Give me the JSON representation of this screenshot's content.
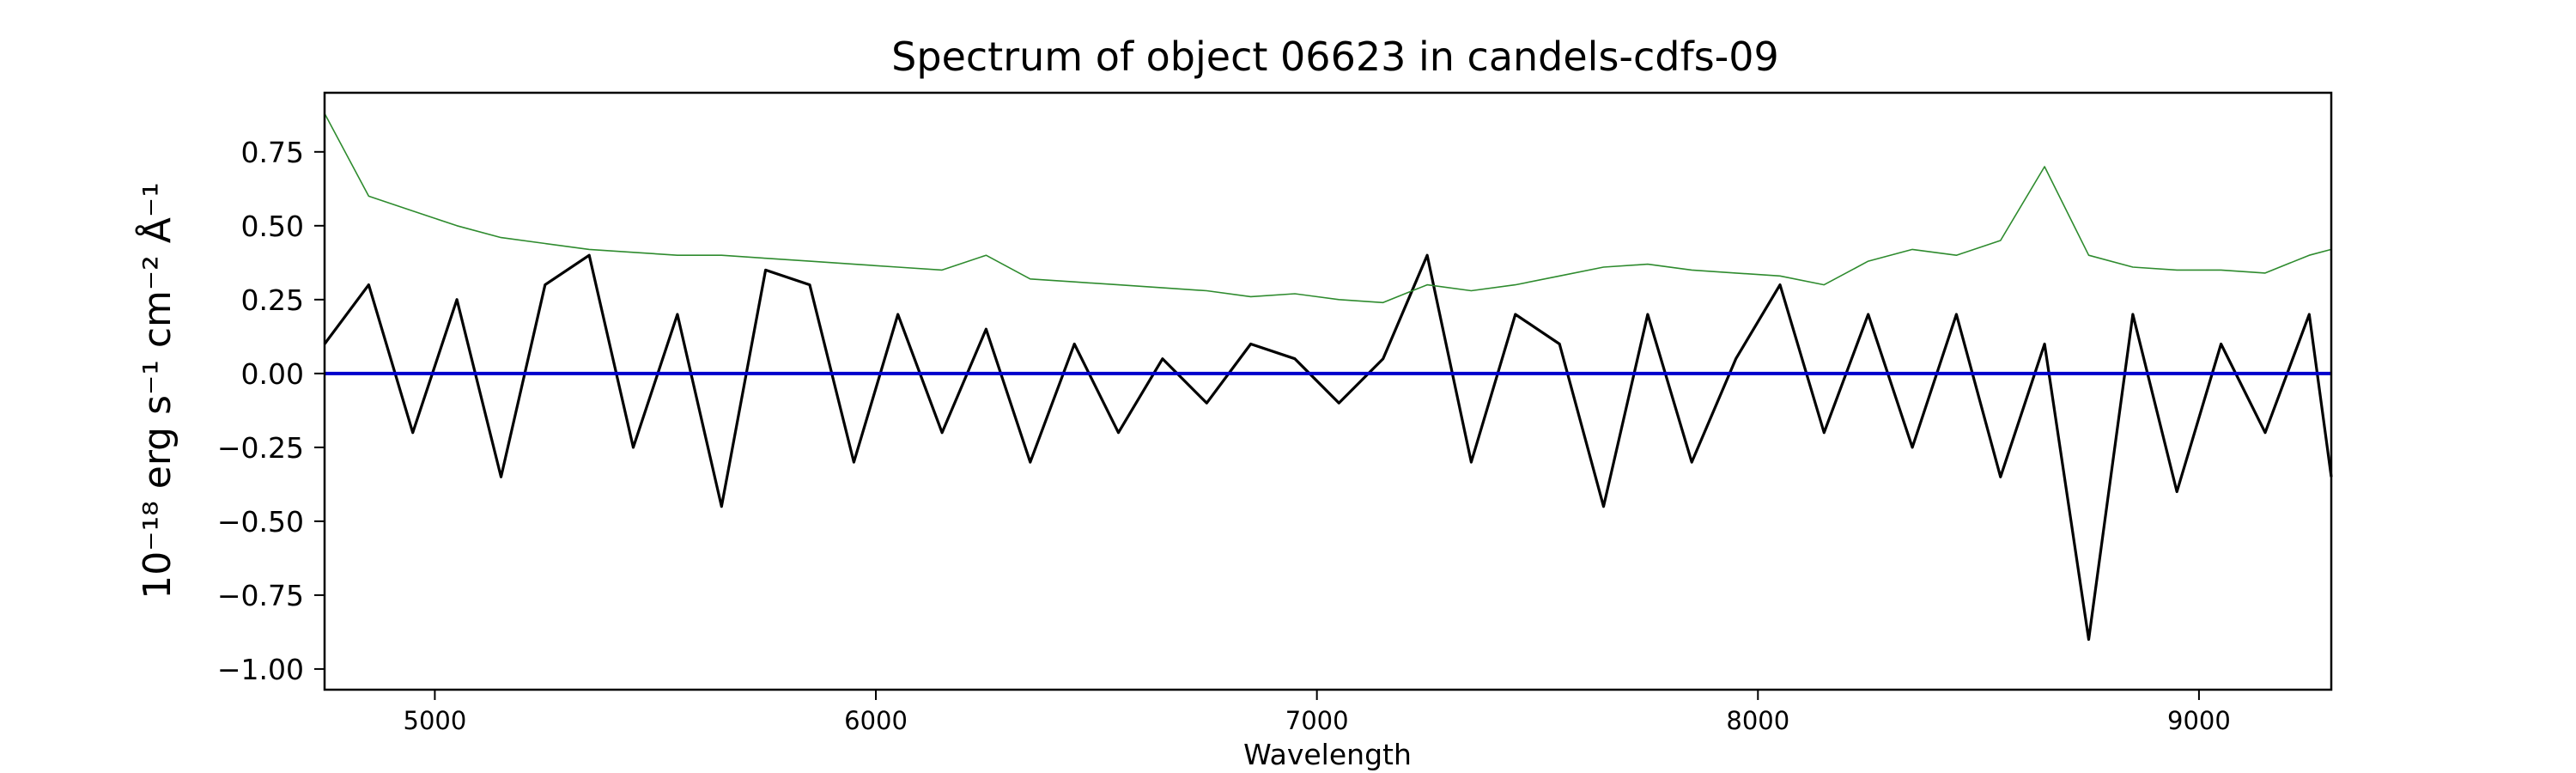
{
  "chart_data": {
    "type": "line",
    "title": "Spectrum of object 06623 in candels-cdfs-09",
    "xlabel": "Wavelength",
    "ylabel": "10⁻¹⁸ erg s⁻¹ cm⁻² Å⁻¹",
    "xlim": [
      4750,
      9300
    ],
    "ylim": [
      -1.07,
      0.95
    ],
    "xticks": [
      5000,
      6000,
      7000,
      8000,
      9000
    ],
    "xtick_labels": [
      "5000",
      "6000",
      "7000",
      "8000",
      "9000"
    ],
    "yticks": [
      0.75,
      0.5,
      0.25,
      0.0,
      -0.25,
      -0.5,
      -0.75,
      -1.0
    ],
    "ytick_labels": [
      "0.75",
      "0.50",
      "0.25",
      "0.00",
      "−0.25",
      "−0.50",
      "−0.75",
      "−1.00"
    ],
    "grid": false,
    "series": [
      {
        "role": "flux",
        "color": "#000000",
        "x": [
          4750,
          4850,
          4950,
          5050,
          5150,
          5250,
          5350,
          5450,
          5550,
          5650,
          5750,
          5850,
          5950,
          6050,
          6150,
          6250,
          6350,
          6450,
          6550,
          6650,
          6750,
          6850,
          6950,
          7050,
          7150,
          7250,
          7350,
          7450,
          7550,
          7650,
          7750,
          7850,
          7950,
          8050,
          8150,
          8250,
          8350,
          8450,
          8550,
          8650,
          8750,
          8850,
          8950,
          9050,
          9150,
          9250,
          9300
        ],
        "y": [
          0.1,
          0.3,
          -0.2,
          0.25,
          -0.35,
          0.3,
          0.4,
          -0.25,
          0.2,
          -0.45,
          0.35,
          0.3,
          -0.3,
          0.2,
          -0.2,
          0.15,
          -0.3,
          0.1,
          -0.2,
          0.05,
          -0.1,
          0.1,
          0.05,
          -0.1,
          0.05,
          0.4,
          -0.3,
          0.2,
          0.1,
          -0.45,
          0.2,
          -0.3,
          0.05,
          0.3,
          -0.2,
          0.2,
          -0.25,
          0.2,
          -0.35,
          0.1,
          -0.9,
          0.2,
          -0.4,
          0.1,
          -0.2,
          0.2,
          -0.35
        ]
      },
      {
        "role": "model",
        "color": "#2e8b2e",
        "x": [
          4750,
          4850,
          4950,
          5050,
          5150,
          5250,
          5350,
          5450,
          5550,
          5650,
          5750,
          5850,
          5950,
          6050,
          6150,
          6250,
          6350,
          6450,
          6550,
          6650,
          6750,
          6850,
          6950,
          7050,
          7150,
          7250,
          7350,
          7450,
          7550,
          7650,
          7750,
          7850,
          7950,
          8050,
          8150,
          8250,
          8350,
          8450,
          8550,
          8650,
          8750,
          8850,
          8950,
          9050,
          9150,
          9250,
          9300
        ],
        "y": [
          0.88,
          0.6,
          0.55,
          0.5,
          0.46,
          0.44,
          0.42,
          0.41,
          0.4,
          0.4,
          0.39,
          0.38,
          0.37,
          0.36,
          0.35,
          0.4,
          0.32,
          0.31,
          0.3,
          0.29,
          0.28,
          0.26,
          0.27,
          0.25,
          0.24,
          0.3,
          0.28,
          0.3,
          0.33,
          0.36,
          0.37,
          0.35,
          0.34,
          0.33,
          0.3,
          0.38,
          0.42,
          0.4,
          0.45,
          0.7,
          0.4,
          0.36,
          0.35,
          0.35,
          0.34,
          0.4,
          0.42
        ]
      },
      {
        "role": "zero",
        "color": "#0000cc",
        "x": [
          4750,
          9300
        ],
        "y": [
          0.0,
          0.0
        ]
      }
    ]
  }
}
